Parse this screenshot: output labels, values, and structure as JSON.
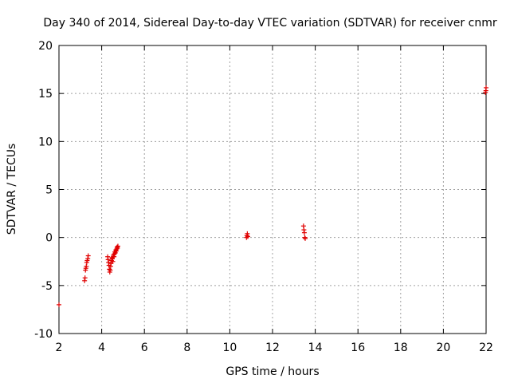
{
  "chart_data": {
    "type": "scatter",
    "title": "Day 340 of 2014, Sidereal Day-to-day VTEC variation (SDTVAR) for receiver cnmr",
    "xlabel": "GPS time / hours",
    "ylabel": "SDTVAR / TECUs",
    "xlim": [
      2,
      22
    ],
    "ylim": [
      -10,
      20
    ],
    "xticks": [
      2,
      4,
      6,
      8,
      10,
      12,
      14,
      16,
      18,
      20,
      22
    ],
    "yticks": [
      -10,
      -5,
      0,
      5,
      10,
      15,
      20
    ],
    "grid": true,
    "marker_color": "#e00000",
    "series": [
      {
        "name": "SDTVAR",
        "points": [
          [
            2.0,
            -7.0
          ],
          [
            3.2,
            -4.5
          ],
          [
            3.22,
            -4.2
          ],
          [
            3.24,
            -3.4
          ],
          [
            3.26,
            -3.2
          ],
          [
            3.28,
            -3.0
          ],
          [
            3.3,
            -2.6
          ],
          [
            3.32,
            -2.4
          ],
          [
            3.35,
            -2.2
          ],
          [
            3.37,
            -1.9
          ],
          [
            4.28,
            -2.0
          ],
          [
            4.3,
            -2.3
          ],
          [
            4.32,
            -2.6
          ],
          [
            4.34,
            -2.9
          ],
          [
            4.36,
            -3.3
          ],
          [
            4.38,
            -3.6
          ],
          [
            4.4,
            -3.4
          ],
          [
            4.42,
            -3.0
          ],
          [
            4.44,
            -2.7
          ],
          [
            4.46,
            -2.4
          ],
          [
            4.48,
            -2.1
          ],
          [
            4.5,
            -2.2
          ],
          [
            4.52,
            -2.5
          ],
          [
            4.54,
            -2.0
          ],
          [
            4.56,
            -1.8
          ],
          [
            4.58,
            -2.0
          ],
          [
            4.6,
            -1.7
          ],
          [
            4.62,
            -1.5
          ],
          [
            4.64,
            -1.6
          ],
          [
            4.66,
            -1.3
          ],
          [
            4.68,
            -1.4
          ],
          [
            4.7,
            -1.2
          ],
          [
            4.72,
            -1.0
          ],
          [
            4.74,
            -1.1
          ],
          [
            4.76,
            -0.9
          ],
          [
            10.78,
            0.0
          ],
          [
            10.8,
            0.2
          ],
          [
            10.82,
            0.4
          ],
          [
            10.84,
            0.1
          ],
          [
            13.45,
            1.2
          ],
          [
            13.47,
            0.8
          ],
          [
            13.49,
            0.5
          ],
          [
            13.51,
            0.0
          ],
          [
            13.53,
            -0.1
          ],
          [
            21.97,
            15.1
          ],
          [
            21.99,
            15.3
          ],
          [
            22.0,
            15.6
          ]
        ]
      }
    ]
  }
}
